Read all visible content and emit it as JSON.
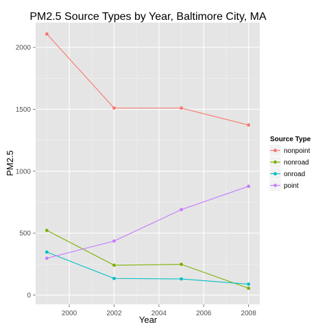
{
  "chart_data": {
    "type": "line",
    "title": "PM2.5 Source Types by Year, Baltimore City, MA",
    "xlabel": "Year",
    "ylabel": "PM2.5",
    "xlim": [
      1998.5,
      2008.5
    ],
    "ylim": [
      -75,
      2200
    ],
    "x_ticks": [
      2000,
      2002,
      2004,
      2006,
      2008
    ],
    "x_tick_labels": [
      "2000",
      "2002",
      "2004",
      "2006",
      "2008"
    ],
    "y_ticks": [
      0,
      500,
      1000,
      1500,
      2000
    ],
    "y_tick_labels": [
      "0",
      "500",
      "1000",
      "1500",
      "2000"
    ],
    "grid": true,
    "legend": {
      "title": "Source Type",
      "placement": "right"
    },
    "x": [
      1999,
      2002,
      2005,
      2008
    ],
    "series": [
      {
        "name": "nonpoint",
        "color": "#F8766D",
        "values": [
          2108,
          1510,
          1510,
          1373
        ]
      },
      {
        "name": "nonroad",
        "color": "#7CAE00",
        "values": [
          522,
          241,
          248,
          55
        ]
      },
      {
        "name": "onroad",
        "color": "#00BFC4",
        "values": [
          347,
          134,
          130,
          88
        ]
      },
      {
        "name": "point",
        "color": "#C77CFF",
        "values": [
          297,
          436,
          690,
          878
        ]
      }
    ]
  }
}
